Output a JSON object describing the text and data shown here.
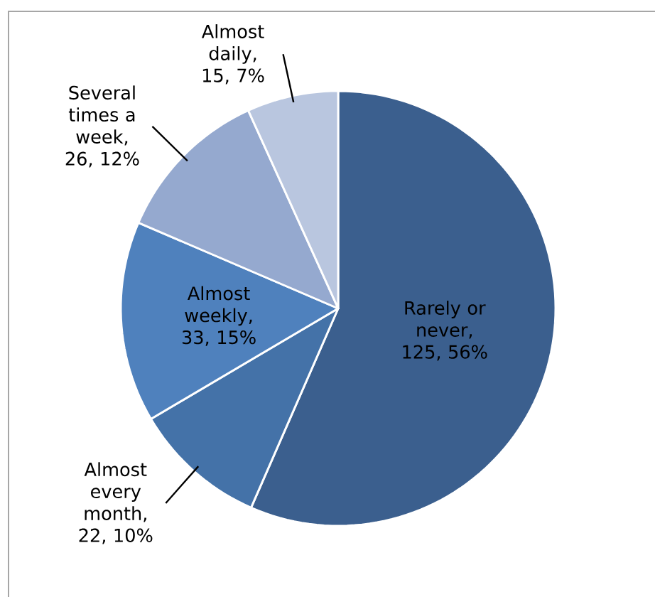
{
  "chart_data": {
    "type": "pie",
    "categories": [
      "Rarely or never",
      "Almost every month",
      "Almost weekly",
      "Several times a week",
      "Almost daily"
    ],
    "values": [
      125,
      22,
      33,
      26,
      15
    ],
    "colors": [
      "#3b5f8e",
      "#4472a8",
      "#4f81bd",
      "#95a9cf",
      "#b9c6df"
    ],
    "value_labels": [
      ", 125, 56%",
      ", 22, 10%",
      ", 33, 15%",
      ", 26, 12%",
      ", 15, 7%"
    ]
  }
}
